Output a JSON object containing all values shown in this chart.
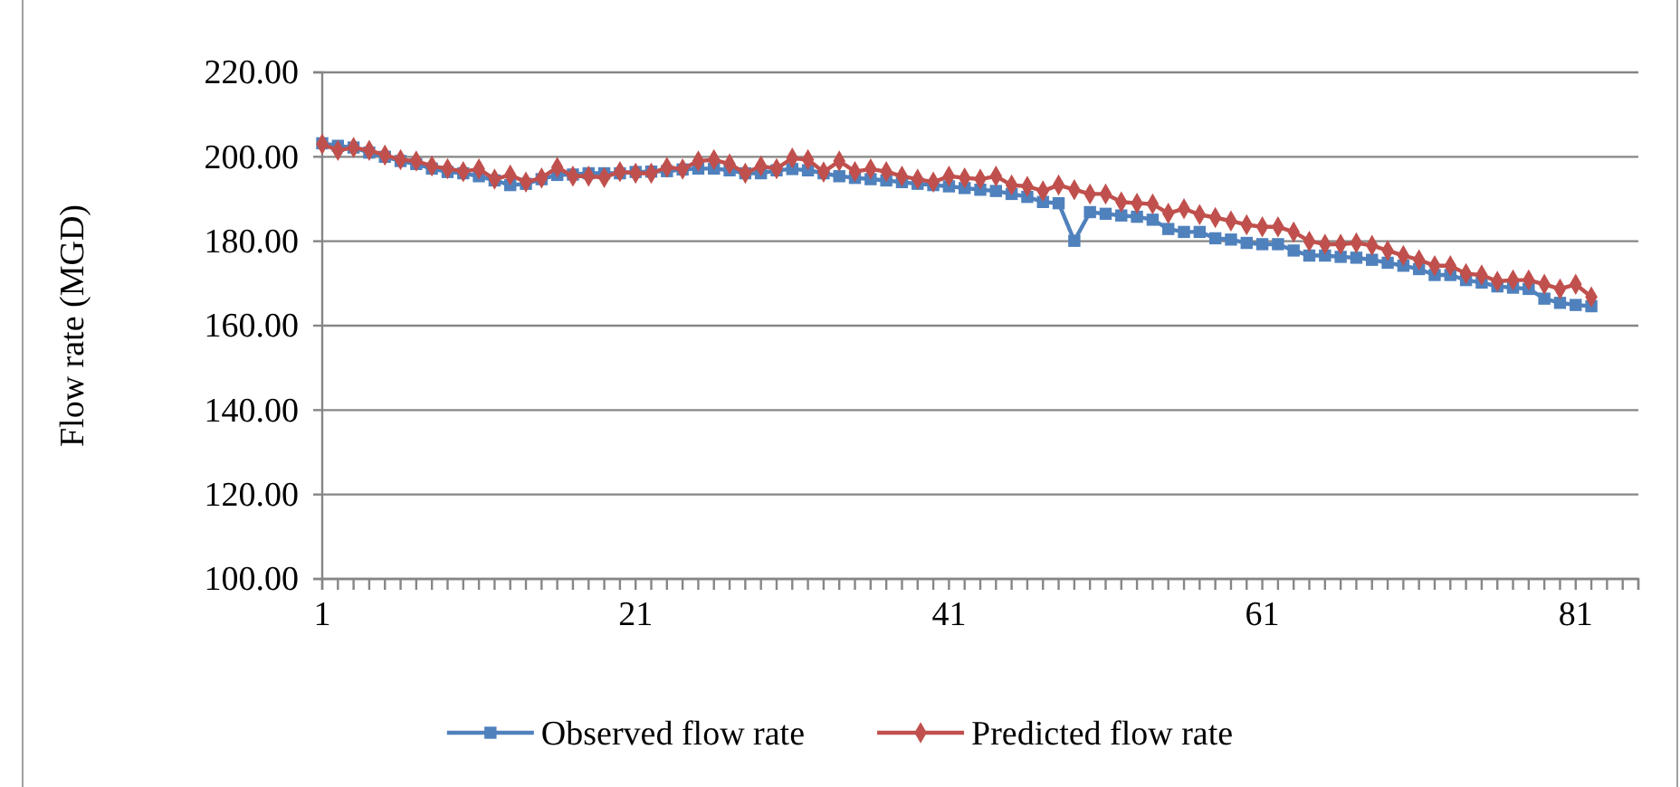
{
  "chart_data": {
    "type": "line",
    "ylabel": "Flow rate (MGD)",
    "x": [
      1,
      2,
      3,
      4,
      5,
      6,
      7,
      8,
      9,
      10,
      11,
      12,
      13,
      14,
      15,
      16,
      17,
      18,
      19,
      20,
      21,
      22,
      23,
      24,
      25,
      26,
      27,
      28,
      29,
      30,
      31,
      32,
      33,
      34,
      35,
      36,
      37,
      38,
      39,
      40,
      41,
      42,
      43,
      44,
      45,
      46,
      47,
      48,
      49,
      50,
      51,
      52,
      53,
      54,
      55,
      56,
      57,
      58,
      59,
      60,
      61,
      62,
      63,
      64,
      65,
      66,
      67,
      68,
      69,
      70,
      71,
      72,
      73,
      74,
      75,
      76,
      77,
      78,
      79,
      80,
      81,
      82
    ],
    "series": [
      {
        "name": "Observed flow rate",
        "color": "#4f81bd",
        "marker": "square",
        "values": [
          203.2,
          202.6,
          202.2,
          201,
          200,
          199,
          198.3,
          197.2,
          196.4,
          196.1,
          195.4,
          194.4,
          193.3,
          193.6,
          194.7,
          195.7,
          195.8,
          196.1,
          196.1,
          196.1,
          196.4,
          196.5,
          196.6,
          197,
          197.2,
          197.2,
          196.8,
          196.1,
          196.1,
          196.8,
          197.1,
          196.8,
          196.1,
          195.4,
          195,
          194.7,
          194.4,
          194,
          193.6,
          193.3,
          193,
          192.6,
          192.2,
          191.9,
          191.2,
          190.5,
          189.3,
          189,
          180.1,
          186.9,
          186.5,
          186.1,
          185.8,
          185.1,
          182.9,
          182.2,
          182.2,
          180.7,
          180.4,
          179.6,
          179.3,
          179.3,
          177.8,
          176.6,
          176.6,
          176.3,
          176.1,
          175.6,
          174.9,
          174.2,
          173.4,
          172,
          172,
          170.8,
          170.2,
          169.3,
          169,
          168.7,
          166.4,
          165.4,
          164.9,
          164.6
        ]
      },
      {
        "name": "Predicted flow rate",
        "color": "#c0504d",
        "marker": "diamond",
        "values": [
          203,
          201.5,
          202.2,
          201.5,
          200.4,
          199.3,
          199,
          197.8,
          197.2,
          196.5,
          197.1,
          194.7,
          195.7,
          194,
          195,
          197.5,
          195.4,
          195.4,
          195.1,
          196.5,
          196.1,
          196.1,
          197.5,
          197.1,
          199,
          199.3,
          198.3,
          196.1,
          197.8,
          197.2,
          199.7,
          199.3,
          196.4,
          199,
          196.5,
          197.1,
          196.5,
          195.4,
          194.7,
          194,
          195.4,
          195,
          194.7,
          195.4,
          193.3,
          193,
          191.9,
          193.3,
          192.2,
          191.2,
          191.2,
          189.3,
          189,
          188.8,
          186.6,
          187.7,
          186.3,
          185.6,
          184.8,
          183.9,
          183.4,
          183.4,
          182.2,
          180,
          179.3,
          179.3,
          179.6,
          179,
          177.8,
          176.6,
          175.6,
          174.2,
          174.2,
          172.3,
          172,
          170.5,
          170.8,
          170.8,
          169.8,
          168.7,
          169.8,
          166.8
        ]
      }
    ],
    "xlim": [
      1,
      85
    ],
    "xticks": [
      1,
      {
        "value": 2,
        "label": null
      },
      {
        "value": 3,
        "label": null
      },
      {
        "value": 4,
        "label": null
      },
      {
        "value": 5,
        "label": null
      },
      {
        "value": 6,
        "label": null
      },
      {
        "value": 7,
        "label": null
      },
      {
        "value": 8,
        "label": null
      },
      {
        "value": 9,
        "label": null
      },
      {
        "value": 10,
        "label": null
      },
      {
        "value": 11,
        "label": null
      },
      {
        "value": 12,
        "label": null
      },
      {
        "value": 13,
        "label": null
      },
      {
        "value": 14,
        "label": null
      },
      {
        "value": 15,
        "label": null
      },
      {
        "value": 16,
        "label": null
      },
      {
        "value": 17,
        "label": null
      },
      {
        "value": 18,
        "label": null
      },
      {
        "value": 19,
        "label": null
      },
      {
        "value": 20,
        "label": null
      },
      21,
      {
        "value": 22,
        "label": null
      },
      {
        "value": 23,
        "label": null
      },
      {
        "value": 24,
        "label": null
      },
      {
        "value": 25,
        "label": null
      },
      {
        "value": 26,
        "label": null
      },
      {
        "value": 27,
        "label": null
      },
      {
        "value": 28,
        "label": null
      },
      {
        "value": 29,
        "label": null
      },
      {
        "value": 30,
        "label": null
      },
      {
        "value": 31,
        "label": null
      },
      {
        "value": 32,
        "label": null
      },
      {
        "value": 33,
        "label": null
      },
      {
        "value": 34,
        "label": null
      },
      {
        "value": 35,
        "label": null
      },
      {
        "value": 36,
        "label": null
      },
      {
        "value": 37,
        "label": null
      },
      {
        "value": 38,
        "label": null
      },
      {
        "value": 39,
        "label": null
      },
      {
        "value": 40,
        "label": null
      },
      41,
      {
        "value": 42,
        "label": null
      },
      {
        "value": 43,
        "label": null
      },
      {
        "value": 44,
        "label": null
      },
      {
        "value": 45,
        "label": null
      },
      {
        "value": 46,
        "label": null
      },
      {
        "value": 47,
        "label": null
      },
      {
        "value": 48,
        "label": null
      },
      {
        "value": 49,
        "label": null
      },
      {
        "value": 50,
        "label": null
      },
      {
        "value": 51,
        "label": null
      },
      {
        "value": 52,
        "label": null
      },
      {
        "value": 53,
        "label": null
      },
      {
        "value": 54,
        "label": null
      },
      {
        "value": 55,
        "label": null
      },
      {
        "value": 56,
        "label": null
      },
      {
        "value": 57,
        "label": null
      },
      {
        "value": 58,
        "label": null
      },
      {
        "value": 59,
        "label": null
      },
      {
        "value": 60,
        "label": null
      },
      61,
      {
        "value": 62,
        "label": null
      },
      {
        "value": 63,
        "label": null
      },
      {
        "value": 64,
        "label": null
      },
      {
        "value": 65,
        "label": null
      },
      {
        "value": 66,
        "label": null
      },
      {
        "value": 67,
        "label": null
      },
      {
        "value": 68,
        "label": null
      },
      {
        "value": 69,
        "label": null
      },
      {
        "value": 70,
        "label": null
      },
      {
        "value": 71,
        "label": null
      },
      {
        "value": 72,
        "label": null
      },
      {
        "value": 73,
        "label": null
      },
      {
        "value": 74,
        "label": null
      },
      {
        "value": 75,
        "label": null
      },
      {
        "value": 76,
        "label": null
      },
      {
        "value": 77,
        "label": null
      },
      {
        "value": 78,
        "label": null
      },
      {
        "value": 79,
        "label": null
      },
      {
        "value": 80,
        "label": null
      },
      81,
      {
        "value": 82,
        "label": null
      },
      {
        "value": 83,
        "label": null
      },
      {
        "value": 84,
        "label": null
      },
      {
        "value": 85,
        "label": null
      }
    ],
    "ylim": [
      100,
      220
    ],
    "yticks": [
      {
        "value": 100,
        "label": "100.00"
      },
      {
        "value": 120,
        "label": "120.00"
      },
      {
        "value": 140,
        "label": "140.00"
      },
      {
        "value": 160,
        "label": "160.00"
      },
      {
        "value": 180,
        "label": "180.00"
      },
      {
        "value": 200,
        "label": "200.00"
      },
      {
        "value": 220,
        "label": "220.00"
      }
    ],
    "grid": "y",
    "legend": "bottom"
  }
}
